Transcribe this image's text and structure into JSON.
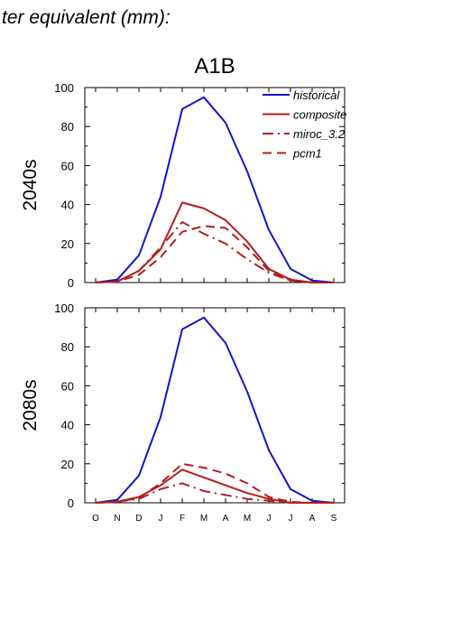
{
  "heading": "ter equivalent (mm):",
  "chart_data": [
    {
      "type": "line",
      "title": "A1B",
      "ylabel": "2040s",
      "xlabel": "",
      "categories": [
        "O",
        "N",
        "D",
        "J",
        "F",
        "M",
        "A",
        "M",
        "J",
        "J",
        "A",
        "S"
      ],
      "ylim": [
        0,
        100
      ],
      "yticks": [
        0,
        20,
        40,
        60,
        80,
        100
      ],
      "grid": false,
      "legend_position": "top-right",
      "series": [
        {
          "name": "historical",
          "color": "#1414c8",
          "dash": "solid",
          "values": [
            0,
            1.5,
            14,
            44,
            89,
            95,
            82,
            57,
            27,
            7,
            1,
            0
          ]
        },
        {
          "name": "composite",
          "color": "#b41e1e",
          "dash": "solid",
          "values": [
            0,
            0.5,
            6,
            17,
            41,
            38,
            32,
            21,
            7,
            1.5,
            0,
            0
          ]
        },
        {
          "name": "miroc_3.2",
          "color": "#b41e1e",
          "dash": "dashdot",
          "values": [
            0,
            0.5,
            6,
            18,
            31,
            25,
            20,
            12,
            5,
            1,
            0,
            0
          ]
        },
        {
          "name": "pcm1",
          "color": "#b41e1e",
          "dash": "dash",
          "values": [
            0,
            0.5,
            4,
            13,
            26,
            29,
            28,
            18,
            6,
            1,
            0,
            0
          ]
        }
      ]
    },
    {
      "type": "line",
      "title": "",
      "ylabel": "2080s",
      "xlabel": "",
      "categories": [
        "O",
        "N",
        "D",
        "J",
        "F",
        "M",
        "A",
        "M",
        "J",
        "J",
        "A",
        "S"
      ],
      "ylim": [
        0,
        100
      ],
      "yticks": [
        0,
        20,
        40,
        60,
        80,
        100
      ],
      "grid": false,
      "series": [
        {
          "name": "historical",
          "color": "#1414c8",
          "dash": "solid",
          "values": [
            0,
            1.5,
            14,
            44,
            89,
            95,
            82,
            57,
            27,
            7,
            1,
            0
          ]
        },
        {
          "name": "composite",
          "color": "#b41e1e",
          "dash": "solid",
          "values": [
            0,
            0.5,
            3,
            9,
            17,
            13,
            9,
            5,
            2,
            0,
            0,
            0
          ]
        },
        {
          "name": "miroc_3.2",
          "color": "#b41e1e",
          "dash": "dashdot",
          "values": [
            0,
            0.5,
            2,
            7,
            10,
            6,
            4,
            2,
            1,
            0,
            0,
            0
          ]
        },
        {
          "name": "pcm1",
          "color": "#b41e1e",
          "dash": "dash",
          "values": [
            0,
            0.5,
            2.5,
            10,
            20,
            18,
            15,
            10,
            3,
            0.5,
            0,
            0
          ]
        }
      ]
    }
  ]
}
